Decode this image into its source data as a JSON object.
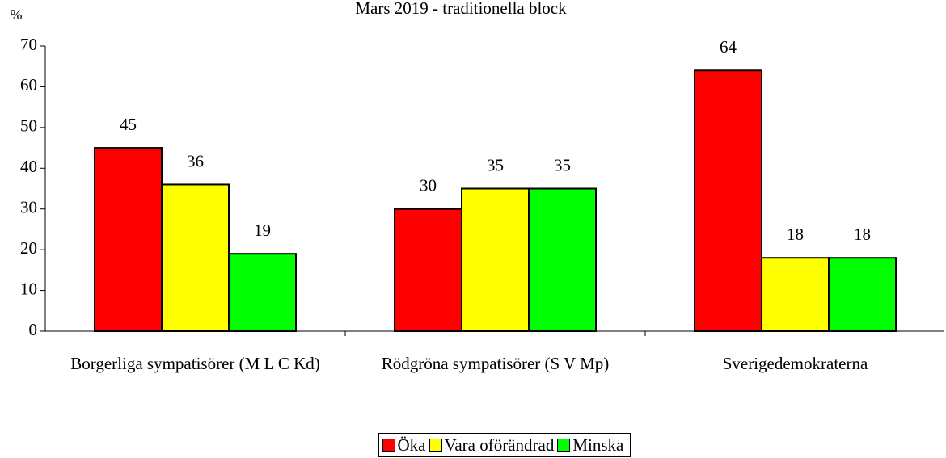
{
  "chart_data": {
    "type": "bar",
    "title": "Mars 2019 - traditionella block",
    "y_label": "%",
    "categories": [
      "Borgerliga sympatisörer (M L C Kd)",
      "Rödgröna sympatisörer (S V Mp)",
      "Sverigedemokraterna"
    ],
    "series": [
      {
        "name": "Öka",
        "color": "#ff0000",
        "values": [
          45,
          30,
          64
        ]
      },
      {
        "name": "Vara oförändrad",
        "color": "#ffff00",
        "values": [
          36,
          35,
          18
        ]
      },
      {
        "name": "Minska",
        "color": "#00ff00",
        "values": [
          19,
          35,
          18
        ]
      }
    ],
    "ylim": [
      0,
      70
    ],
    "yticks": [
      0,
      10,
      20,
      30,
      40,
      50,
      60,
      70
    ],
    "grid": false,
    "legend": "bottom"
  }
}
